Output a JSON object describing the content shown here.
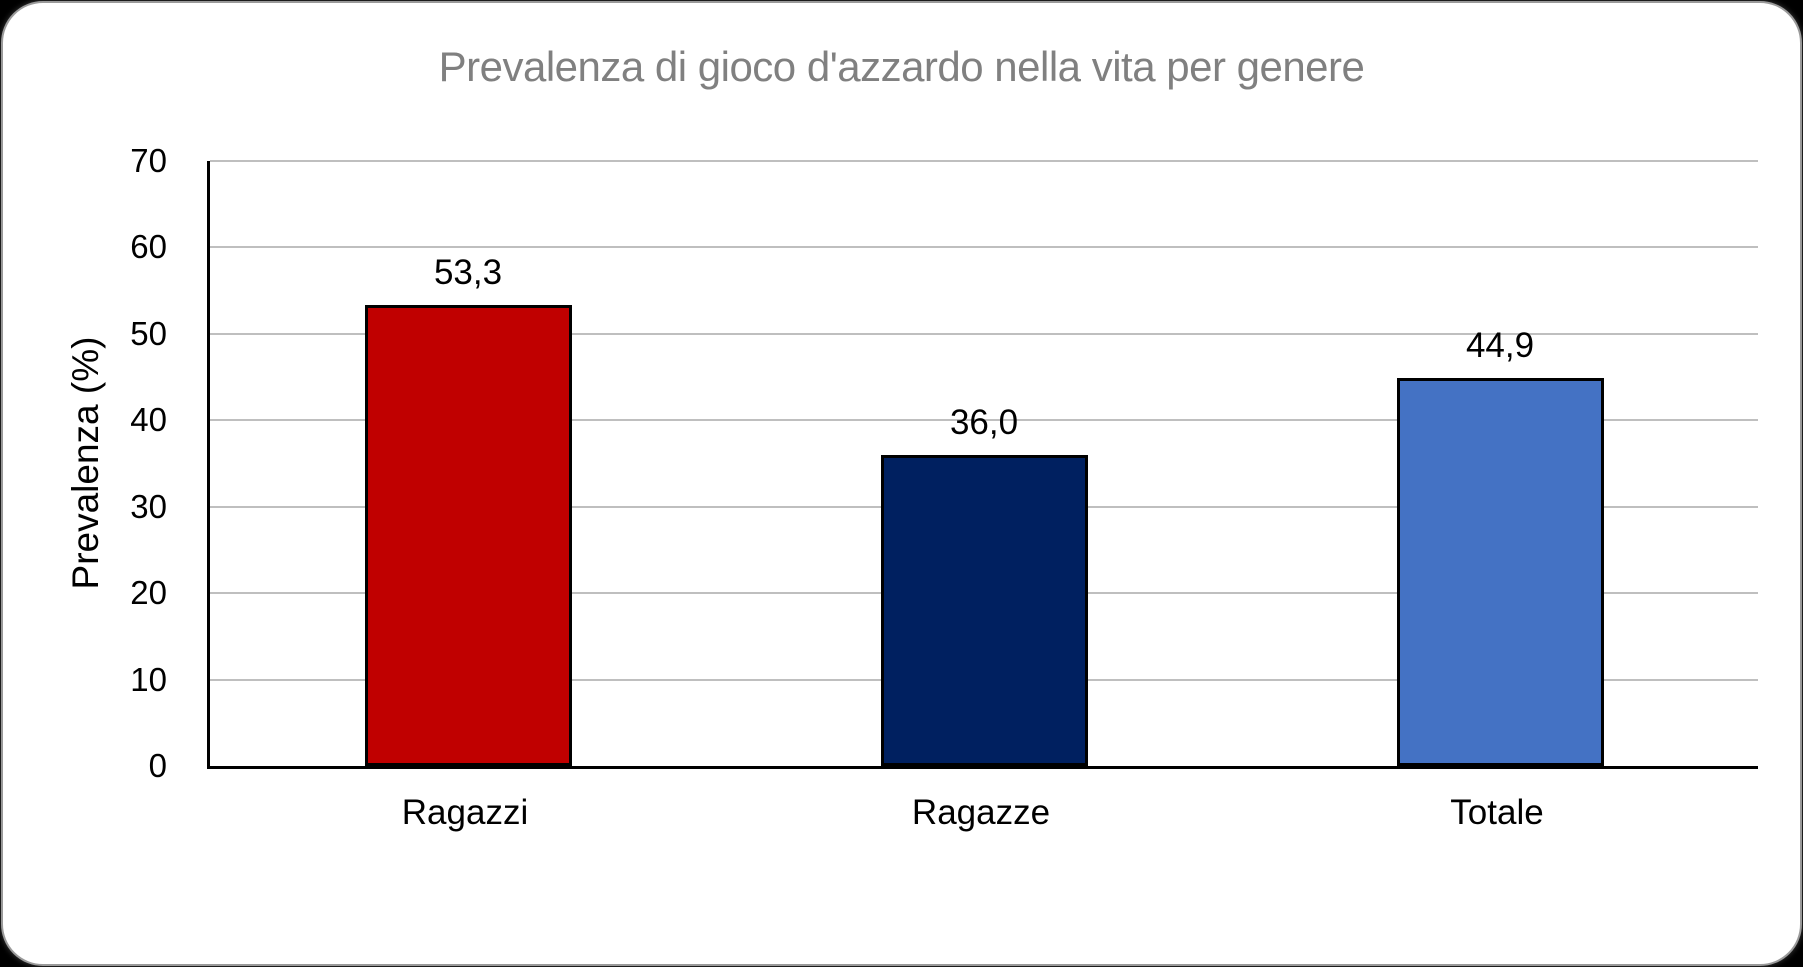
{
  "frame": {
    "background_color": "#000000",
    "card_background_color": "#ffffff",
    "card_border_color": "#9a9a9a"
  },
  "chart_data": {
    "type": "bar",
    "title": "Prevalenza di gioco d'azzardo nella vita per genere",
    "title_color": "#808080",
    "xlabel": "",
    "ylabel": "Prevalenza (%)",
    "categories": [
      "Ragazzi",
      "Ragazze",
      "Totale"
    ],
    "values": [
      53.3,
      36.0,
      44.9
    ],
    "value_labels": [
      "53,3",
      "36,0",
      "44,9"
    ],
    "bar_colors": [
      "#c00000",
      "#002060",
      "#4472c4"
    ],
    "bar_border_color": "#000000",
    "ylim": [
      0,
      70
    ],
    "yticks": [
      0,
      10,
      20,
      30,
      40,
      50,
      60,
      70
    ],
    "grid": "horizontal",
    "gridline_color": "#bfbfbf",
    "axis_line_color": "#000000",
    "legend_position": "none",
    "text_color": "#000000"
  }
}
